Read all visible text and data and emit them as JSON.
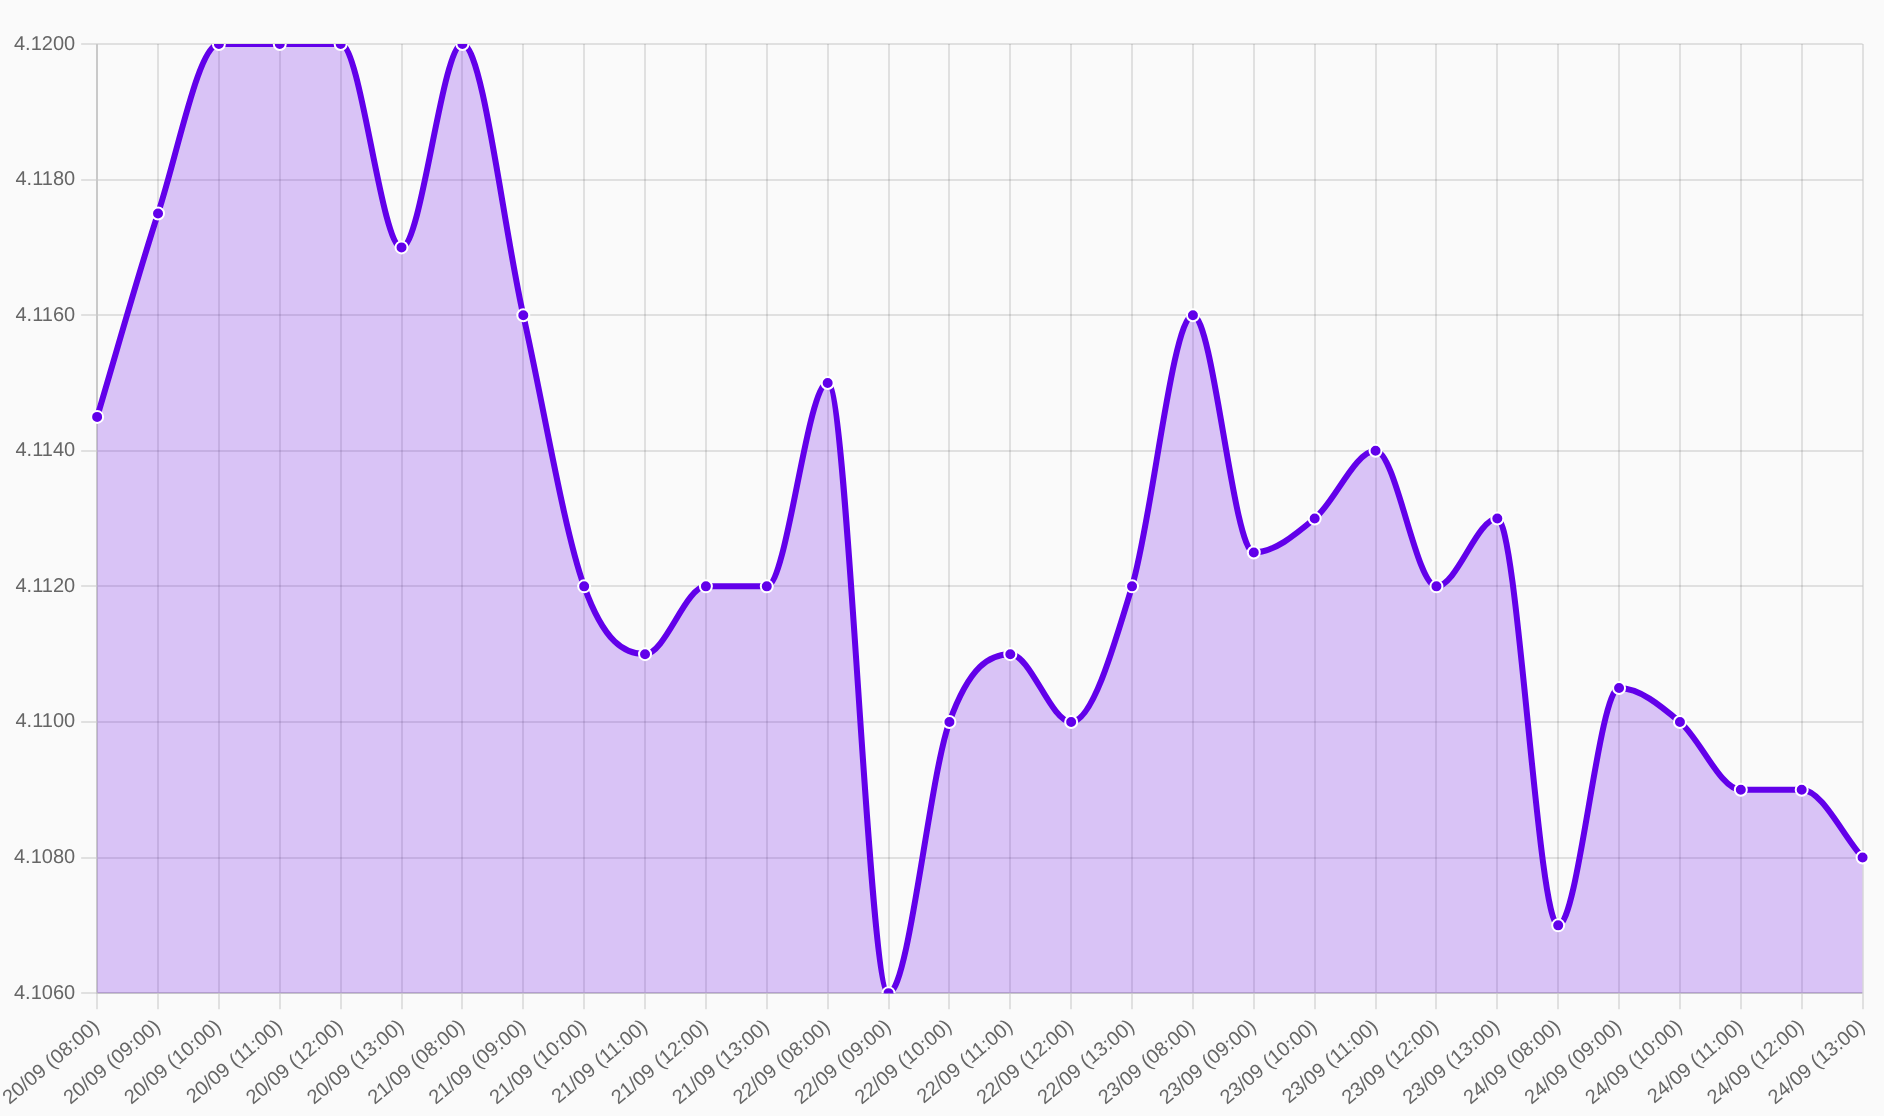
{
  "chart_data": {
    "type": "area",
    "categories": [
      "20/09 (08:00)",
      "20/09 (09:00)",
      "20/09 (10:00)",
      "20/09 (11:00)",
      "20/09 (12:00)",
      "20/09 (13:00)",
      "21/09 (08:00)",
      "21/09 (09:00)",
      "21/09 (10:00)",
      "21/09 (11:00)",
      "21/09 (12:00)",
      "21/09 (13:00)",
      "22/09 (08:00)",
      "22/09 (09:00)",
      "22/09 (10:00)",
      "22/09 (11:00)",
      "22/09 (12:00)",
      "22/09 (13:00)",
      "23/09 (08:00)",
      "23/09 (09:00)",
      "23/09 (10:00)",
      "23/09 (11:00)",
      "23/09 (12:00)",
      "23/09 (13:00)",
      "24/09 (08:00)",
      "24/09 (09:00)",
      "24/09 (10:00)",
      "24/09 (11:00)",
      "24/09 (12:00)",
      "24/09 (13:00)"
    ],
    "series": [
      {
        "color": "#6200ea",
        "values": [
          4.1145,
          4.1175,
          4.12,
          4.12,
          4.12,
          4.117,
          4.12,
          4.116,
          4.112,
          4.111,
          4.112,
          4.112,
          4.115,
          4.106,
          4.11,
          4.111,
          4.11,
          4.112,
          4.116,
          4.1125,
          4.113,
          4.114,
          4.112,
          4.113,
          4.107,
          4.1105,
          4.11,
          4.109,
          4.109,
          4.108
        ]
      }
    ],
    "ylim": [
      4.106,
      4.12
    ],
    "yticks": [
      {
        "value": 4.106,
        "label": "4.1060"
      },
      {
        "value": 4.108,
        "label": "4.1080"
      },
      {
        "value": 4.11,
        "label": "4.1100"
      },
      {
        "value": 4.112,
        "label": "4.1120"
      },
      {
        "value": 4.114,
        "label": "4.1140"
      },
      {
        "value": 4.116,
        "label": "4.1160"
      },
      {
        "value": 4.118,
        "label": "4.1180"
      },
      {
        "value": 4.12,
        "label": "4.1200"
      }
    ],
    "grid": true,
    "marker": "circle",
    "legend": false
  }
}
